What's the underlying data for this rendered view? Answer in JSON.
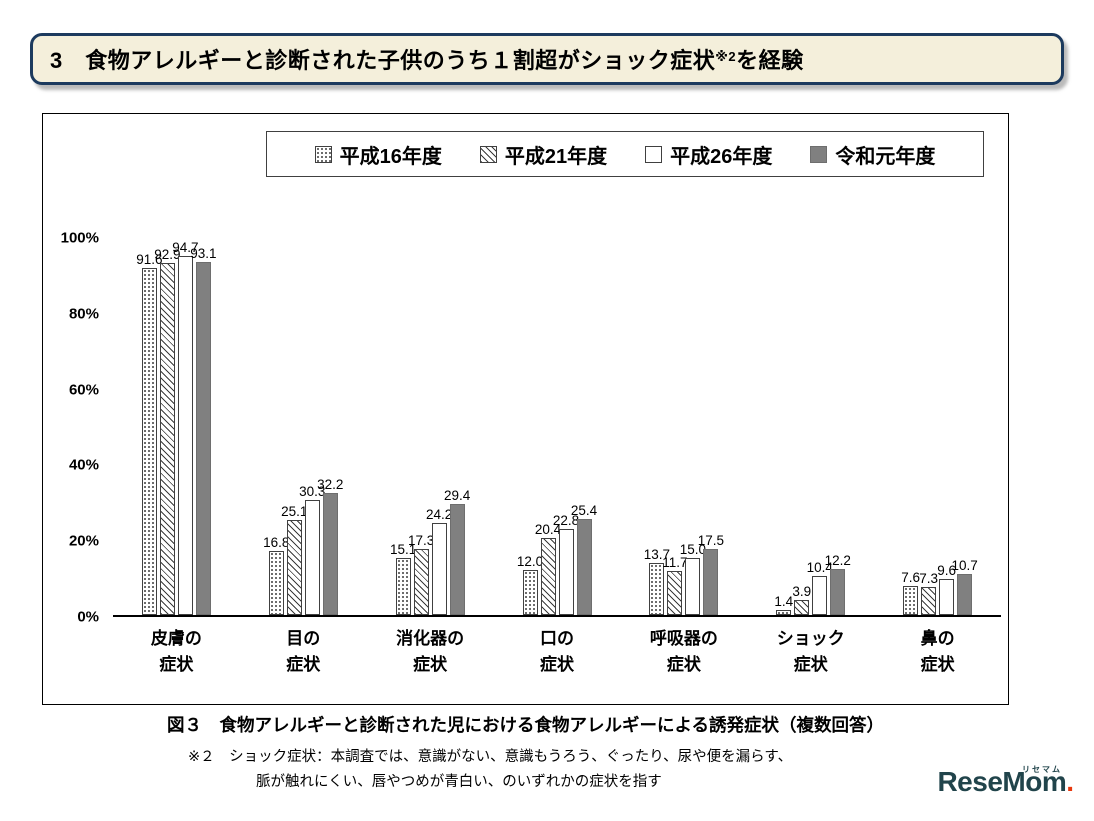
{
  "header": {
    "text": "3　食物アレルギーと診断された子供のうち１割超がショック症状",
    "superscript": "※2",
    "suffix": "を経験"
  },
  "chart_data": {
    "type": "bar",
    "title": "",
    "categories": [
      "皮膚の\n症状",
      "目の\n症状",
      "消化器の\n症状",
      "口の\n症状",
      "呼吸器の\n症状",
      "ショック\n症状",
      "鼻の\n症状"
    ],
    "series": [
      {
        "name": "平成16年度",
        "pattern": "dots",
        "values": [
          91.6,
          16.8,
          15.1,
          12.0,
          13.7,
          1.4,
          7.6
        ]
      },
      {
        "name": "平成21年度",
        "pattern": "diagonal",
        "values": [
          92.9,
          25.1,
          17.3,
          20.4,
          11.7,
          3.9,
          7.3
        ]
      },
      {
        "name": "平成26年度",
        "pattern": "white",
        "values": [
          94.7,
          30.3,
          24.2,
          22.8,
          15.0,
          10.4,
          9.6
        ]
      },
      {
        "name": "令和元年度",
        "pattern": "gray",
        "values": [
          93.1,
          32.2,
          29.4,
          25.4,
          17.5,
          12.2,
          10.7
        ]
      }
    ],
    "yticks": [
      "0%",
      "20%",
      "40%",
      "60%",
      "80%",
      "100%"
    ],
    "ylim": [
      0,
      100
    ],
    "grid": false,
    "legend_position": "top-center",
    "value_label_decimals": 1,
    "colors": {
      "gray_fill": "#808080",
      "bar_border": "#404040"
    }
  },
  "caption": "図３　食物アレルギーと診断された児における食物アレルギーによる誘発症状（複数回答）",
  "footnote": {
    "line1": "※２　ショック症状：本調査では、意識がない、意識もうろう、ぐったり、尿や便を漏らす、",
    "line2": "脈が触れにくい、唇やつめが青白い、のいずれかの症状を指す"
  },
  "logo": {
    "text": "ReseMom",
    "dot": ".",
    "ruby": "リセマム"
  }
}
